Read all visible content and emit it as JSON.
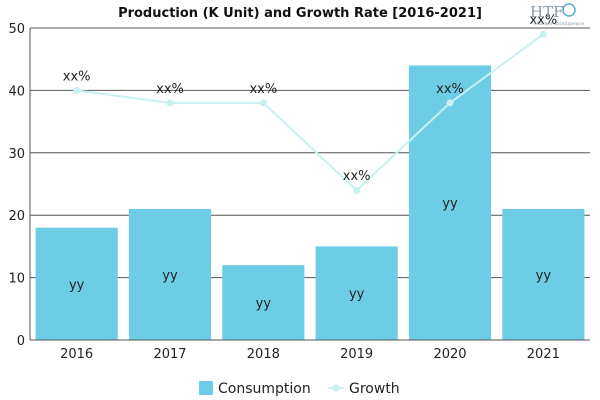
{
  "chart_data": {
    "type": "bar",
    "title": "Production (K Unit) and Growth Rate [2016-2021]",
    "categories": [
      "2016",
      "2017",
      "2018",
      "2019",
      "2020",
      "2021"
    ],
    "series": [
      {
        "name": "Consumption",
        "type": "bar",
        "values": [
          18,
          21,
          12,
          15,
          44,
          21
        ],
        "labels": [
          "yy",
          "yy",
          "yy",
          "yy",
          "yy",
          "yy"
        ],
        "color": "#6ecde6"
      },
      {
        "name": "Growth",
        "type": "line",
        "values": [
          40,
          38,
          38,
          24,
          38,
          49
        ],
        "labels": [
          "xx%",
          "xx%",
          "xx%",
          "xx%",
          "xx%",
          "xx%"
        ],
        "color": "#c8f0f2"
      }
    ],
    "ylim": [
      0,
      50
    ],
    "yticks": [
      0,
      10,
      20,
      30,
      40,
      50
    ],
    "grid": true,
    "legend_position": "bottom"
  },
  "logo": {
    "text": "HTF",
    "subtext": "Market Intelligence"
  }
}
